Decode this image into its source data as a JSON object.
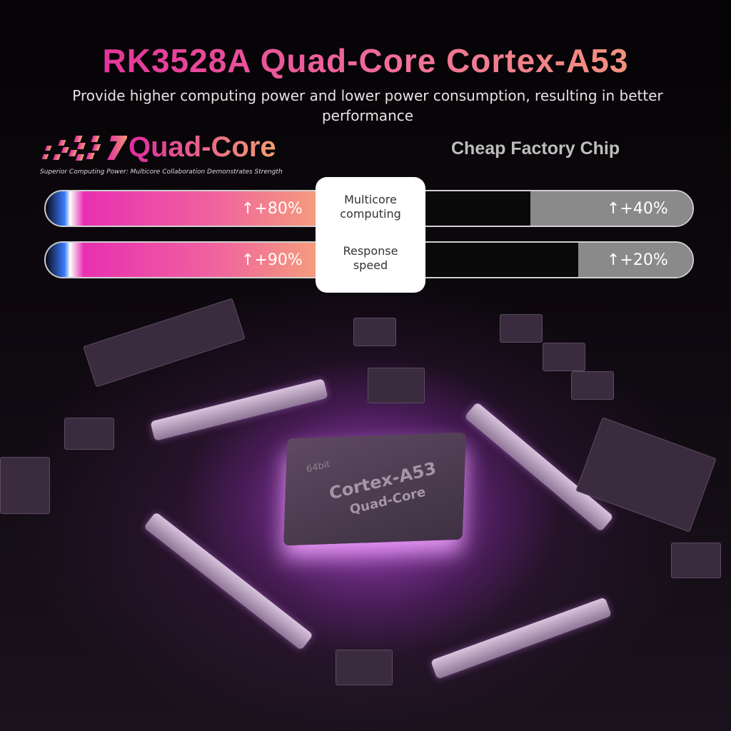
{
  "header": {
    "title": "RK3528A Quad-Core Cortex-A53",
    "subtitle": "Provide higher computing power and lower power consumption, resulting in better performance"
  },
  "left": {
    "title": "Quad-Core",
    "tagline": "Superior Computing Power: Multicore Collaboration Demonstrates Strength"
  },
  "right": {
    "title": "Cheap Factory Chip"
  },
  "comparison": [
    {
      "label_line1": "Multicore",
      "label_line2": "computing",
      "quad_core": "↑+80%",
      "cheap": "↑+40%",
      "quad_core_value": 80,
      "cheap_value": 40
    },
    {
      "label_line1": "Response",
      "label_line2": "speed",
      "quad_core": "↑+90%",
      "cheap": "↑+20%",
      "quad_core_value": 90,
      "cheap_value": 20
    }
  ],
  "chip": {
    "bits": "64bit",
    "name": "Cortex-A53",
    "cores": "Quad-Core"
  },
  "colors": {
    "pink": "#e02aa0",
    "orange": "#f3a070",
    "gray": "#8a8a8a",
    "background": "#0b070c"
  }
}
